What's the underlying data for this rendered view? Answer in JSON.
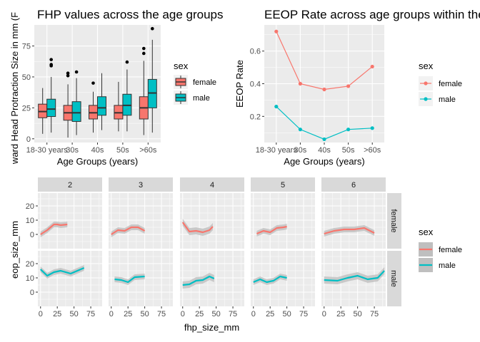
{
  "colors": {
    "panel_bg": "#ebebeb",
    "grid_major": "#ffffff",
    "strip_bg": "#d9d9d9",
    "female": "#f8766d",
    "male": "#00bfc4",
    "ribbon": "#bfbfbf"
  },
  "chart_data": [
    {
      "type": "boxplot",
      "title": "FHP values across the age groups",
      "xlabel": "Age Groups (years)",
      "ylabel": "ward Head Protraction Size in mm (F",
      "categories": [
        "18-30 years",
        "30s",
        "40s",
        "50s",
        ">60s"
      ],
      "yticks": [
        0,
        25,
        50,
        75
      ],
      "ylim": [
        -3,
        92
      ],
      "grid": true,
      "legend": {
        "title": "sex",
        "entries": [
          "female",
          "male"
        ],
        "placement": "right"
      },
      "series": [
        {
          "name": "female",
          "boxes": [
            {
              "min": 4,
              "q1": 17,
              "median": 22,
              "q3": 28,
              "max": 41,
              "outliers": []
            },
            {
              "min": 1,
              "q1": 15,
              "median": 21,
              "q3": 27,
              "max": 44,
              "outliers": [
                51,
                53
              ]
            },
            {
              "min": 5,
              "q1": 16,
              "median": 21,
              "q3": 27,
              "max": 38,
              "outliers": [
                45
              ]
            },
            {
              "min": 6,
              "q1": 16,
              "median": 21,
              "q3": 27,
              "max": 46,
              "outliers": []
            },
            {
              "min": 3,
              "q1": 16,
              "median": 25,
              "q3": 34,
              "max": 63,
              "outliers": [
                69,
                73
              ]
            }
          ]
        },
        {
          "name": "male",
          "boxes": [
            {
              "min": 5,
              "q1": 18,
              "median": 24,
              "q3": 32,
              "max": 50,
              "outliers": [
                59,
                60,
                64
              ]
            },
            {
              "min": 3,
              "q1": 14,
              "median": 21,
              "q3": 30,
              "max": 49,
              "outliers": [
                54
              ]
            },
            {
              "min": 7,
              "q1": 19,
              "median": 25,
              "q3": 34,
              "max": 53,
              "outliers": []
            },
            {
              "min": 6,
              "q1": 19,
              "median": 27,
              "q3": 36,
              "max": 56,
              "outliers": [
                62
              ]
            },
            {
              "min": 5,
              "q1": 25,
              "median": 37,
              "q3": 48,
              "max": 80,
              "outliers": [
                89
              ]
            }
          ]
        }
      ]
    },
    {
      "type": "line",
      "title": "EEOP Rate across age groups within the",
      "xlabel": "Age Groups (years)",
      "ylabel": "EEOP Rate",
      "categories": [
        "18-30 years",
        "30s",
        "40s",
        "50s",
        ">60s"
      ],
      "yticks": [
        0.2,
        0.4,
        0.6
      ],
      "ylim": [
        0.04,
        0.76
      ],
      "grid": true,
      "legend": {
        "title": "sex",
        "entries": [
          "female",
          "male"
        ],
        "placement": "right"
      },
      "series": [
        {
          "name": "female",
          "values": [
            0.72,
            0.4,
            0.365,
            0.385,
            0.505
          ]
        },
        {
          "name": "male",
          "values": [
            0.26,
            0.12,
            0.06,
            0.12,
            0.128
          ]
        }
      ]
    },
    {
      "type": "line",
      "subtype": "faceted smooth",
      "xlabel": "fhp_size_mm",
      "ylabel": "eop_size_mm",
      "xticks": [
        0,
        25,
        50,
        75
      ],
      "xlim": [
        -4,
        92
      ],
      "yticks": [
        0,
        10,
        20
      ],
      "ylim": [
        -10,
        29
      ],
      "grid": true,
      "col_facets": [
        "2",
        "3",
        "4",
        "5",
        "6"
      ],
      "row_facets": [
        "female",
        "male"
      ],
      "legend": {
        "title": "sex",
        "entries": [
          "female",
          "male"
        ],
        "placement": "right"
      },
      "panels": [
        {
          "row": "female",
          "col": "2",
          "x": [
            0,
            10,
            20,
            25,
            30,
            40
          ],
          "y": [
            0,
            3,
            7,
            7,
            6.5,
            7
          ],
          "band": 2.0
        },
        {
          "row": "female",
          "col": "3",
          "x": [
            0,
            10,
            20,
            30,
            40,
            50
          ],
          "y": [
            0,
            3,
            2.5,
            5,
            5,
            2.5
          ],
          "band": 2.0
        },
        {
          "row": "female",
          "col": "4",
          "x": [
            0,
            10,
            20,
            30,
            40,
            45
          ],
          "y": [
            8.5,
            2,
            2.5,
            1.5,
            3,
            5.5
          ],
          "band": 2.5
        },
        {
          "row": "female",
          "col": "5",
          "x": [
            5,
            15,
            25,
            35,
            45,
            50
          ],
          "y": [
            0.5,
            2.5,
            1.5,
            4.5,
            5,
            5.5
          ],
          "band": 2.0
        },
        {
          "row": "female",
          "col": "6",
          "x": [
            0,
            15,
            30,
            45,
            60,
            75
          ],
          "y": [
            0.5,
            2.5,
            3.5,
            3.5,
            4.5,
            1
          ],
          "band": 2.0
        },
        {
          "row": "male",
          "col": "2",
          "x": [
            0,
            10,
            20,
            30,
            45,
            65
          ],
          "y": [
            16,
            11.5,
            14,
            15,
            13,
            17
          ],
          "band": 2.0
        },
        {
          "row": "male",
          "col": "3",
          "x": [
            5,
            15,
            25,
            35,
            50
          ],
          "y": [
            9,
            8.5,
            7,
            10.5,
            11
          ],
          "band": 2.0
        },
        {
          "row": "male",
          "col": "4",
          "x": [
            0,
            10,
            20,
            30,
            40,
            47
          ],
          "y": [
            5,
            5.5,
            8,
            8.5,
            11,
            9.5
          ],
          "band": 2.5
        },
        {
          "row": "male",
          "col": "5",
          "x": [
            0,
            10,
            20,
            30,
            40,
            50
          ],
          "y": [
            7,
            9,
            7,
            8,
            11,
            10
          ],
          "band": 2.0
        },
        {
          "row": "male",
          "col": "6",
          "x": [
            0,
            20,
            35,
            50,
            65,
            80,
            90
          ],
          "y": [
            8.5,
            8,
            10,
            11.5,
            9,
            10,
            15
          ],
          "band": 2.5
        }
      ]
    }
  ]
}
